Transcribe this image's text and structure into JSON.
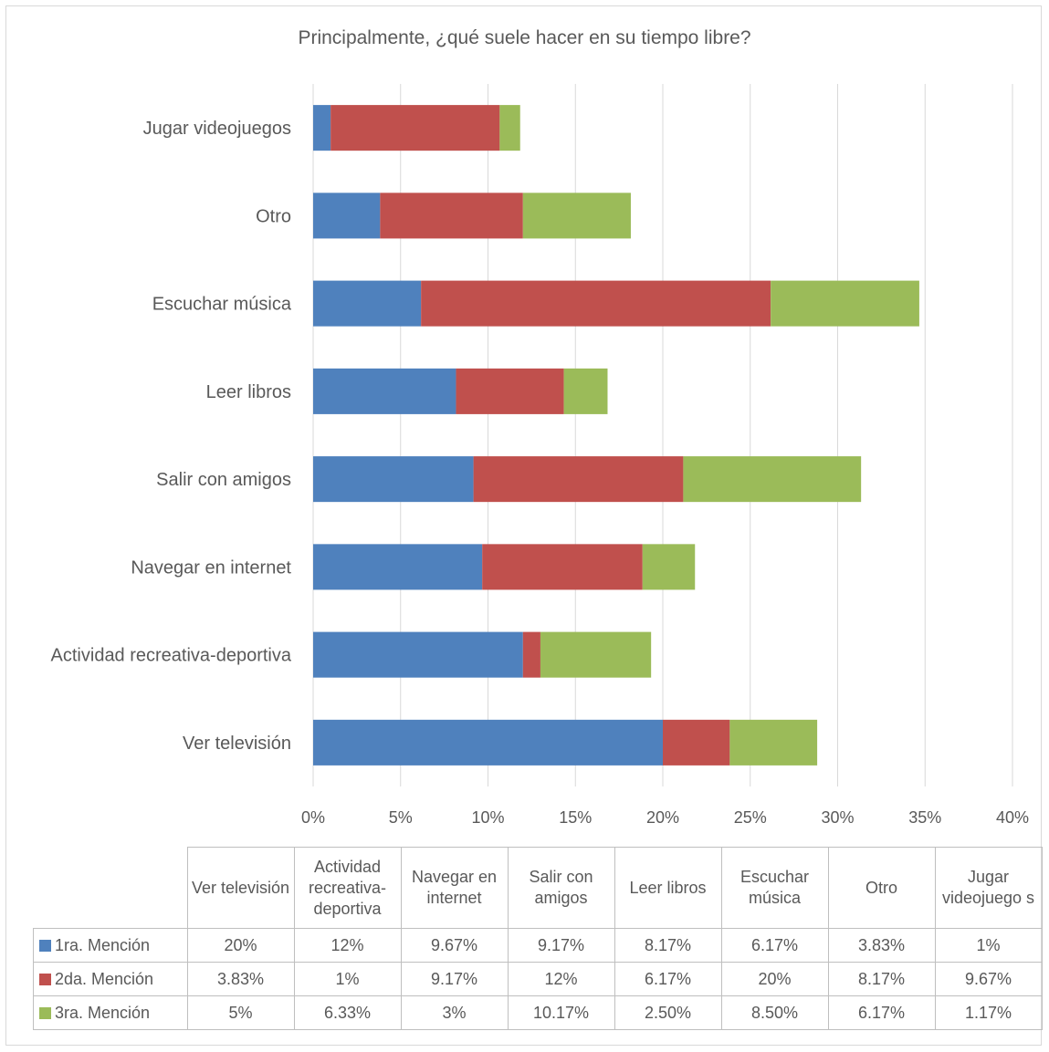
{
  "chart_data": {
    "type": "bar",
    "orientation": "horizontal",
    "stacked": true,
    "title": "Principalmente, ¿qué suele hacer en su tiempo libre?",
    "categories": [
      "Ver televisión",
      "Actividad recreativa-deportiva",
      "Navegar en internet",
      "Salir con amigos",
      "Leer libros",
      "Escuchar música",
      "Otro",
      "Jugar videojuegos"
    ],
    "table_headers": [
      "Ver televisión",
      "Actividad recreativa-deportiva",
      "Navegar en internet",
      "Salir con amigos",
      "Leer libros",
      "Escuchar música",
      "Otro",
      "Jugar videojuego s"
    ],
    "series": [
      {
        "name": "1ra. Mención",
        "color": "#4f81bd",
        "values": [
          20,
          12,
          9.67,
          9.17,
          8.17,
          6.17,
          3.83,
          1
        ],
        "labels": [
          "20%",
          "12%",
          "9.67%",
          "9.17%",
          "8.17%",
          "6.17%",
          "3.83%",
          "1%"
        ]
      },
      {
        "name": "2da. Mención",
        "color": "#c0504d",
        "values": [
          3.83,
          1,
          9.17,
          12,
          6.17,
          20,
          8.17,
          9.67
        ],
        "labels": [
          "3.83%",
          "1%",
          "9.17%",
          "12%",
          "6.17%",
          "20%",
          "8.17%",
          "9.67%"
        ]
      },
      {
        "name": "3ra. Mención",
        "color": "#9bbb59",
        "values": [
          5,
          6.33,
          3,
          10.17,
          2.5,
          8.5,
          6.17,
          1.17
        ],
        "labels": [
          "5%",
          "6.33%",
          "3%",
          "10.17%",
          "2.50%",
          "8.50%",
          "6.17%",
          "1.17%"
        ]
      }
    ],
    "xlim": [
      0,
      40
    ],
    "xticks": [
      "0%",
      "5%",
      "10%",
      "15%",
      "20%",
      "25%",
      "30%",
      "35%",
      "40%"
    ],
    "grid": true,
    "legend": "data-table"
  }
}
